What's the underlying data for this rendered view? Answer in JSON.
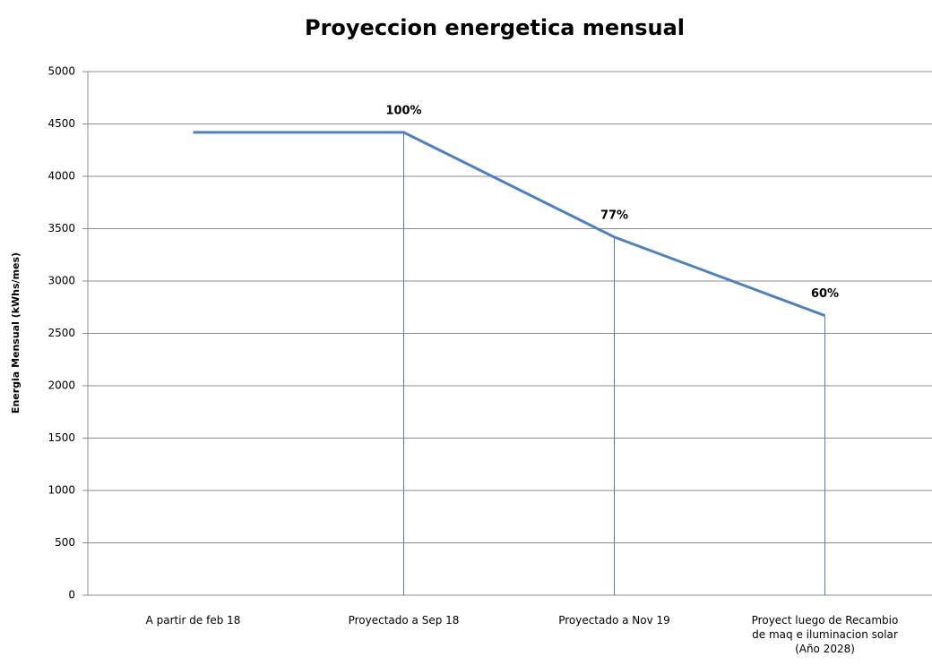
{
  "chart_data": {
    "type": "line",
    "title": "Proyeccion energetica mensual",
    "y_label": "Energia Mensual  (kWhs/mes)",
    "categories": [
      "A partir de feb 18",
      "Proyectado a Sep 18",
      "Proyectado a Nov 19",
      "Proyect luego de Recambio\nde maq e iluminacion solar\n(Año 2028)"
    ],
    "series": [
      {
        "name": null,
        "color": "#4f81bd",
        "values": [
          4420,
          4420,
          3420,
          2670
        ]
      }
    ],
    "annotations": [
      null,
      "100%",
      "77%",
      "60%"
    ],
    "ylim": [
      0,
      5000
    ],
    "yticks": [
      0,
      500,
      1000,
      1500,
      2000,
      2500,
      3000,
      3500,
      4000,
      4500,
      5000
    ],
    "grid": true
  }
}
